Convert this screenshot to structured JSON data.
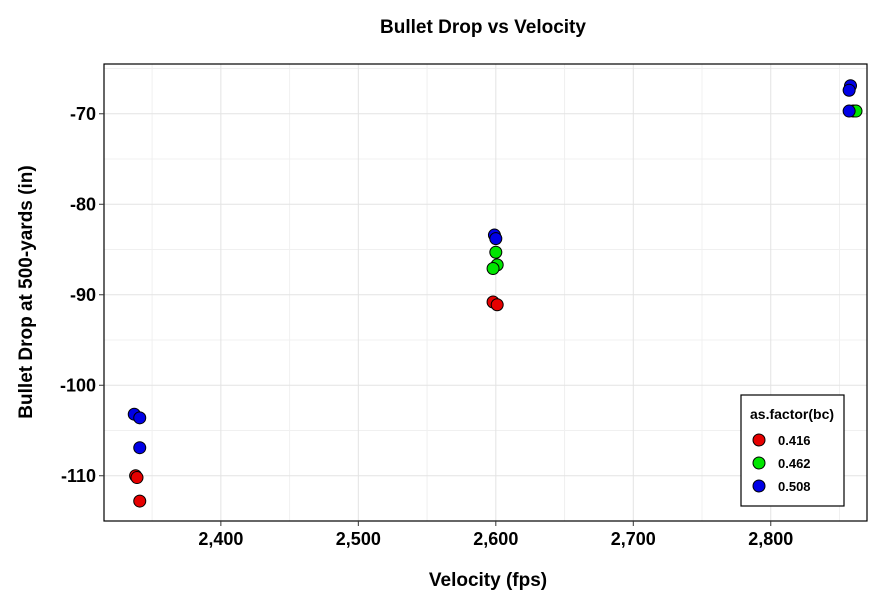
{
  "chart_data": {
    "type": "scatter",
    "title": "Bullet Drop vs Velocity",
    "xlabel": "Velocity (fps)",
    "ylabel": "Bullet Drop at 500-yards (in)",
    "xlim": [
      2315,
      2870
    ],
    "ylim": [
      -115,
      -64.5
    ],
    "xticks": [
      2400,
      2500,
      2600,
      2700,
      2800
    ],
    "xtick_labels": [
      "2,400",
      "2,500",
      "2,600",
      "2,700",
      "2,800"
    ],
    "yticks": [
      -110,
      -100,
      -90,
      -80,
      -70
    ],
    "ytick_labels": [
      "-110",
      "-100",
      "-90",
      "-80",
      "-70"
    ],
    "grid": true,
    "legend": {
      "title": "as.factor(bc)",
      "position": "bottom-right"
    },
    "series": [
      {
        "name": "0.416",
        "color": "#e60000",
        "points": [
          [
            2338,
            -110
          ],
          [
            2339,
            -110.2
          ],
          [
            2341,
            -112.8
          ],
          [
            2598,
            -90.8
          ],
          [
            2601,
            -91.1
          ]
        ]
      },
      {
        "name": "0.462",
        "color": "#00e600",
        "points": [
          [
            2600,
            -85.3
          ],
          [
            2601,
            -86.7
          ],
          [
            2598,
            -87.1
          ],
          [
            2860,
            -69.7
          ],
          [
            2862,
            -69.7
          ]
        ]
      },
      {
        "name": "0.508",
        "color": "#0000e6",
        "points": [
          [
            2337,
            -103.2
          ],
          [
            2341,
            -103.6
          ],
          [
            2341,
            -106.9
          ],
          [
            2599,
            -83.4
          ],
          [
            2600,
            -83.8
          ],
          [
            2857,
            -69.7
          ],
          [
            2858,
            -66.9
          ],
          [
            2857,
            -67.4
          ]
        ]
      }
    ]
  }
}
